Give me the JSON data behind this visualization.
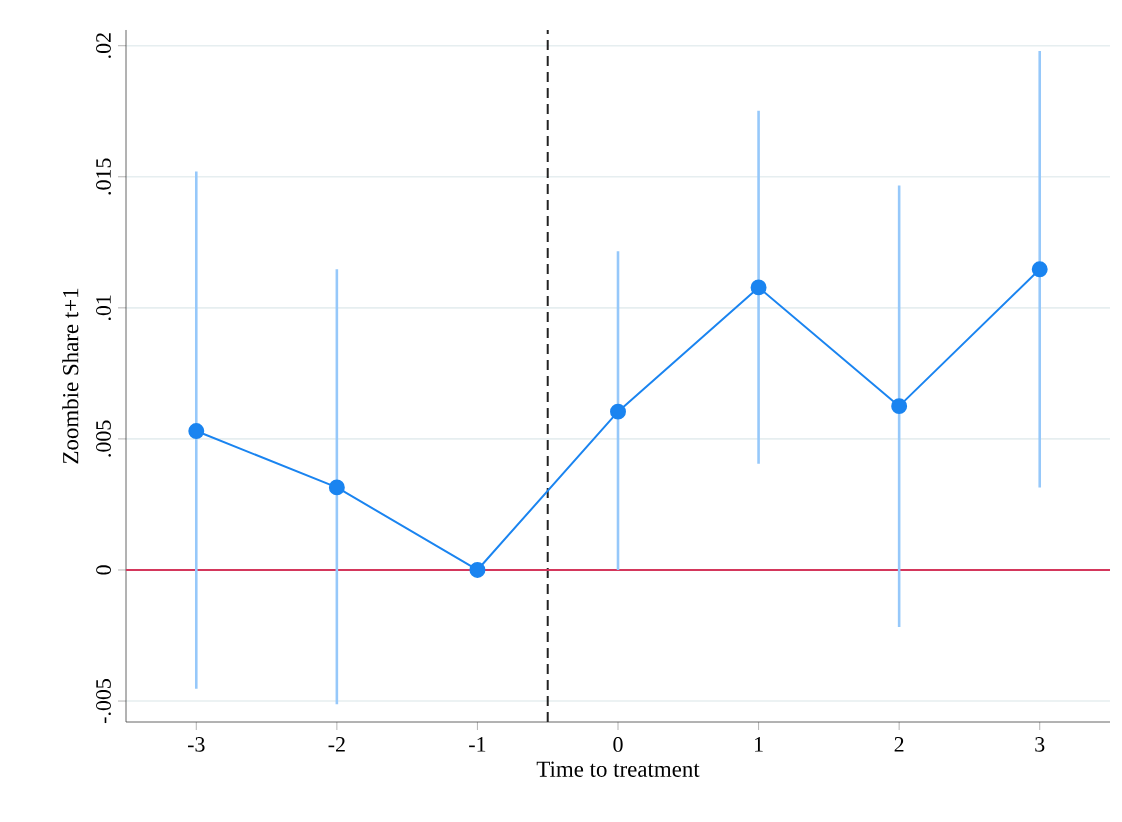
{
  "chart_data": {
    "type": "line",
    "xlabel": "Time to treatment",
    "ylabel": "Zoombie Share t+1",
    "x": [
      -3,
      -2,
      -1,
      0,
      1,
      2,
      3
    ],
    "series": [
      {
        "color": "#1a84f0",
        "values": [
          0.0053,
          0.00315,
          0,
          0.00604,
          0.01078,
          0.00625,
          0.01147
        ],
        "errors": [
          [
            -0.00453,
            0.0152
          ],
          [
            -0.00512,
            0.01147
          ],
          null,
          [
            0,
            0.01216
          ],
          [
            0.00405,
            0.01752
          ],
          [
            -0.00218,
            0.01467
          ],
          [
            0.00315,
            0.0198
          ]
        ]
      }
    ],
    "xlim": [
      -3.5,
      3.5
    ],
    "ylim": [
      -0.0058,
      0.0206
    ],
    "xticks": [
      -3,
      -2,
      -1,
      0,
      1,
      2,
      3
    ],
    "yticks": [
      {
        "value": -0.005,
        "label": "-.005"
      },
      0,
      {
        "value": 0.005,
        "label": ".005"
      },
      {
        "value": 0.01,
        "label": ".01"
      },
      {
        "value": 0.015,
        "label": ".015"
      },
      {
        "value": 0.02,
        "label": ".02"
      }
    ],
    "ref_lines": [
      {
        "axis": "x",
        "value": -0.5,
        "color": "#222222",
        "line_style": "dashed"
      },
      {
        "axis": "y",
        "value": 0,
        "color": "#d4375c",
        "line_style": "solid"
      }
    ],
    "grid": "y",
    "marker": "circle",
    "line_style": "solid"
  }
}
